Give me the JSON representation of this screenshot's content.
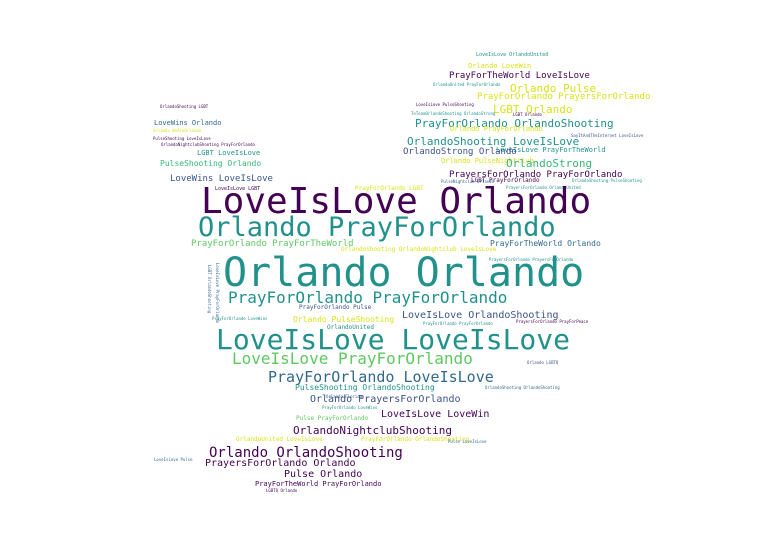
{
  "palette": {
    "dark_purple": "#440154",
    "indigo": "#3b528b",
    "blue": "#31688e",
    "teal": "#21918c",
    "green": "#35b779",
    "lime": "#5ec962",
    "yellow": "#d8e219",
    "gold": "#fde725"
  },
  "words": [
    {
      "text": "LoveIsLove OrlandoUnited",
      "color": "teal"
    },
    {
      "text": "Orlando LoveWin",
      "color": "yellow"
    },
    {
      "text": "PrayForTheWorld LoveIsLove",
      "color": "dark_purple"
    },
    {
      "text": "OrlandoUnited PrayForOrlando",
      "color": "teal"
    },
    {
      "text": "Orlando Pulse",
      "color": "yellow"
    },
    {
      "text": "PrayForOrlando PrayersForOrlando",
      "color": "yellow"
    },
    {
      "text": "OrlandoShooting LGBT",
      "color": "dark_purple"
    },
    {
      "text": "LoveIsLove PulseShooting",
      "color": "dark_purple"
    },
    {
      "text": "LGBT Orlando",
      "color": "yellow"
    },
    {
      "text": "ToTeamOrlandoShooting OrlandoStrong",
      "color": "teal"
    },
    {
      "text": "LGBT Orlando",
      "color": "dark_purple"
    },
    {
      "text": "LoveWins Orlando",
      "color": "blue"
    },
    {
      "text": "PrayForOrlando OrlandoShooting",
      "color": "teal"
    },
    {
      "text": "Orlando PrayForOrlando",
      "color": "yellow"
    },
    {
      "text": "Orlando WeAreOrlando",
      "color": "yellow"
    },
    {
      "text": "PulseShooting LoveIsLove",
      "color": "dark_purple"
    },
    {
      "text": "SayItAndTheInternet LoveIsLove",
      "color": "indigo"
    },
    {
      "text": "OrlandoNightclubShooting PrayForOrlando",
      "color": "dark_purple"
    },
    {
      "text": "OrlandoShooting LoveIsLove",
      "color": "teal"
    },
    {
      "text": "LGBT LoveIsLove",
      "color": "teal"
    },
    {
      "text": "LoveIsLove PrayForTheWorld",
      "color": "teal"
    },
    {
      "text": "OrlandoStrong Orlando",
      "color": "indigo"
    },
    {
      "text": "Orlando PulseNightclub",
      "color": "yellow"
    },
    {
      "text": "PulseShooting Orlando",
      "color": "green"
    },
    {
      "text": "OrlandoStrong",
      "color": "green"
    },
    {
      "text": "PrayersForOrlando PrayForOrlando",
      "color": "dark_purple"
    },
    {
      "text": "LoveWins LoveIsLove",
      "color": "indigo"
    },
    {
      "text": "PulseNightclub Orlando",
      "color": "blue"
    },
    {
      "text": "LGBT PrayForOrlando",
      "color": "dark_purple"
    },
    {
      "text": "OrlandoShooting PulseShooting",
      "color": "teal"
    },
    {
      "text": "LoveIsLove LGBT",
      "color": "dark_purple"
    },
    {
      "text": "PrayForOrlando LGBT",
      "color": "yellow"
    },
    {
      "text": "PrayersForOrlando OrlandoUnited",
      "color": "teal"
    },
    {
      "text": "LoveIsLove Orlando",
      "color": "dark_purple"
    },
    {
      "text": "Orlando PrayForOrlando",
      "color": "teal"
    },
    {
      "text": "PrayForOrlando PrayForTheWorld",
      "color": "lime"
    },
    {
      "text": "OrlandoShooting OrlandoNightclub LoveIsLove",
      "color": "yellow"
    },
    {
      "text": "PrayForTheWorld Orlando",
      "color": "blue"
    },
    {
      "text": "PrayersForOrlando PrayersForOrlando",
      "color": "teal"
    },
    {
      "text": "LGBT OrlandoShooting",
      "color": "blue"
    },
    {
      "text": "Orlando Orlando",
      "color": "teal"
    },
    {
      "text": "LoveIsLove PrayForOrlando",
      "color": "blue"
    },
    {
      "text": "PrayForOrlando PrayForOrlando",
      "color": "teal"
    },
    {
      "text": "PrayForOrlando Pulse",
      "color": "indigo"
    },
    {
      "text": "PrayForOrlando LoveWins",
      "color": "teal"
    },
    {
      "text": "Orlando PulseShooting",
      "color": "yellow"
    },
    {
      "text": "LoveIsLove OrlandoShooting",
      "color": "indigo"
    },
    {
      "text": "PrayForOrlando PrayForOrlando",
      "color": "teal"
    },
    {
      "text": "PrayersForOrlando PrayForPeace",
      "color": "dark_purple"
    },
    {
      "text": "OrlandoUnited",
      "color": "teal"
    },
    {
      "text": "LoveIsLove LoveIsLove",
      "color": "teal"
    },
    {
      "text": "LoveIsLove PrayForOrlando",
      "color": "lime"
    },
    {
      "text": "Orlando LGBTQ",
      "color": "indigo"
    },
    {
      "text": "PrayForOrlando LoveIsLove",
      "color": "blue"
    },
    {
      "text": "OrlandoShooting OrlandoShooting",
      "color": "blue"
    },
    {
      "text": "PulseShooting OrlandoShooting",
      "color": "teal"
    },
    {
      "text": "Orlando PrayersForOrlando",
      "color": "indigo"
    },
    {
      "text": "Orlando Florida",
      "color": "indigo"
    },
    {
      "text": "PrayForOrlando LoveWins",
      "color": "teal"
    },
    {
      "text": "LoveIsLove LoveWin",
      "color": "dark_purple"
    },
    {
      "text": "Pulse PrayForOrlando",
      "color": "lime"
    },
    {
      "text": "OrlandoNightclubShooting",
      "color": "dark_purple"
    },
    {
      "text": "OrlandoUnited LoveIsLove",
      "color": "yellow"
    },
    {
      "text": "PrayForOrlando OrlandoShooting",
      "color": "yellow"
    },
    {
      "text": "Pulse LoveIsLove",
      "color": "blue"
    },
    {
      "text": "Orlando OrlandoShooting",
      "color": "dark_purple"
    },
    {
      "text": "LoveIsLove Pulse",
      "color": "blue"
    },
    {
      "text": "PrayersForOrlando Orlando",
      "color": "dark_purple"
    },
    {
      "text": "Pulse Orlando",
      "color": "dark_purple"
    },
    {
      "text": "PrayForTheWorld PrayForOrlando",
      "color": "dark_purple"
    },
    {
      "text": "LGBTQ Orlando",
      "color": "dark_purple"
    }
  ]
}
